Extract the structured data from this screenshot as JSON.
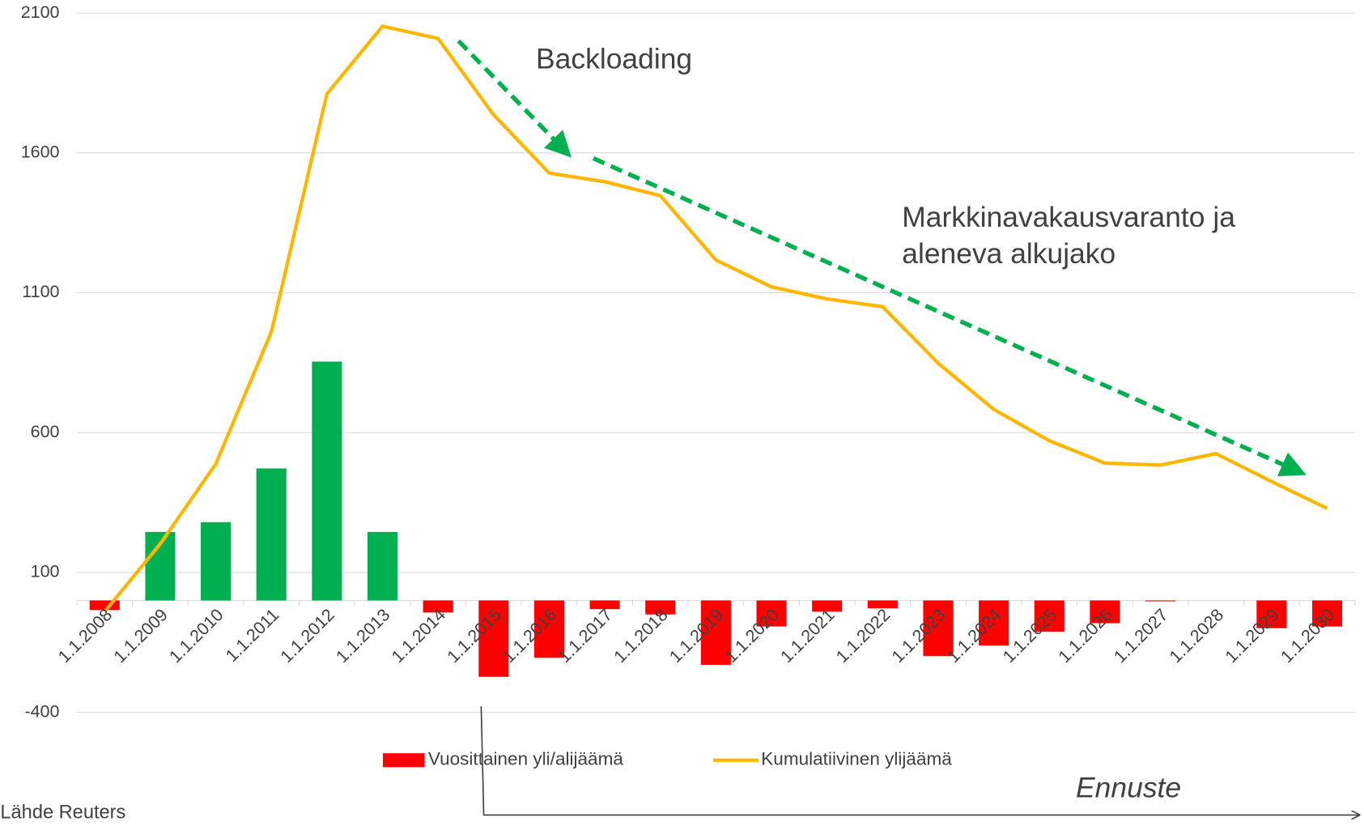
{
  "chart_data": {
    "type": "bar_line",
    "categories": [
      "1.1.2008",
      "1.1.2009",
      "1.1.2010",
      "1.1.2011",
      "1.1.2012",
      "1.1.2013",
      "1.1.2014",
      "1.1.2015",
      "1.1.2016",
      "1.1.2017",
      "1.1.2018",
      "1.1.2019",
      "1.1.2020",
      "1.1.2021",
      "1.1.2022",
      "1.1.2023",
      "1.1.2024",
      "1.1.2025",
      "1.1.2026",
      "1.1.2027",
      "1.1.2028",
      "1.1.2029",
      "1.1.2030"
    ],
    "series": [
      {
        "name": "Vuosittainen yli/alijäämä",
        "type": "bar",
        "color": "#ff0000",
        "positive_color": "#00b050",
        "values": [
          -34,
          245,
          280,
          472,
          854,
          245,
          -43,
          -273,
          -205,
          -31,
          -50,
          -230,
          -93,
          -40,
          -28,
          -199,
          -161,
          -112,
          -81,
          -3,
          0,
          -99,
          -93
        ]
      },
      {
        "name": "Kumulatiivinen ylijäämä",
        "type": "line",
        "color": "#ffb600",
        "values": [
          -40,
          202,
          488,
          960,
          1811,
          2053,
          2009,
          1736,
          1528,
          1497,
          1447,
          1217,
          1121,
          1078,
          1050,
          848,
          683,
          571,
          491,
          484,
          525,
          425,
          329
        ]
      }
    ],
    "ylim": [
      -400,
      2100
    ],
    "yticks": [
      -400,
      100,
      600,
      1100,
      1600,
      2100
    ],
    "grid": true,
    "annotations": [
      "Backloading",
      "Markkinavakausvaranto ja",
      "aleneva alkujako",
      "Ennuste"
    ],
    "source": "Lähde Reuters"
  }
}
